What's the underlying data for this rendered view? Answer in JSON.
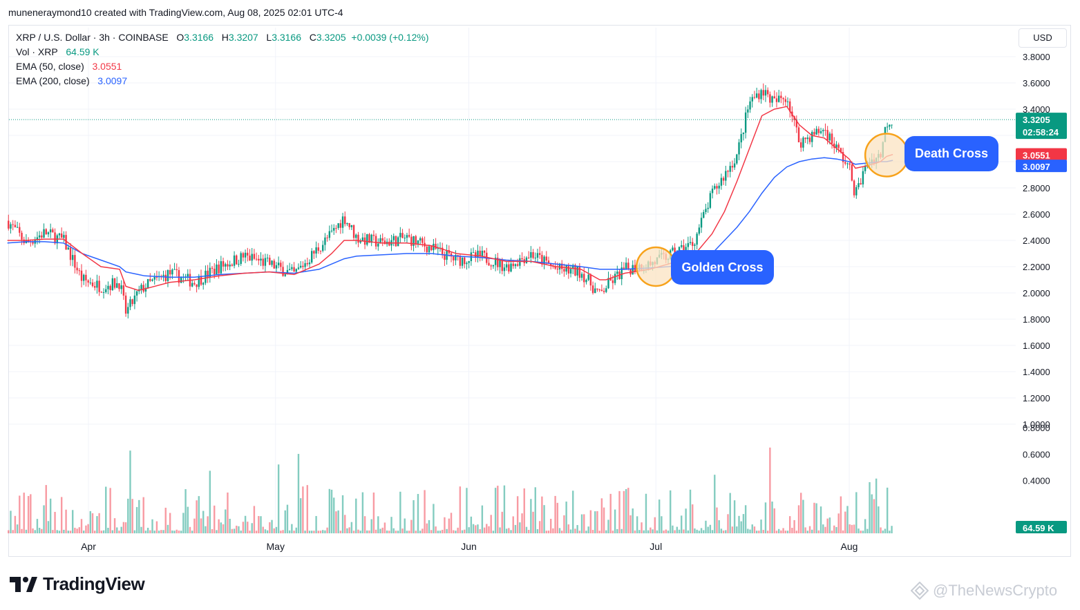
{
  "header": {
    "author_line": "muneneraymond10 created with TradingView.com, Aug 08, 2025 02:01 UTC-4"
  },
  "legend": {
    "symbol": "XRP / U.S. Dollar · 3h · COINBASE",
    "o_key": "O",
    "o": "3.3166",
    "h_key": "H",
    "h": "3.3207",
    "l_key": "L",
    "l": "3.3166",
    "c_key": "C",
    "c": "3.3205",
    "change": "+0.0039 (+0.12%)",
    "vol_label": "Vol · XRP",
    "vol_value": "64.59 K",
    "ema50_label": "EMA (50, close)",
    "ema50_value": "3.0551",
    "ema200_label": "EMA (200, close)",
    "ema200_value": "3.0097"
  },
  "price_scale": {
    "currency": "USD",
    "last_price": "3.3205",
    "countdown": "02:58:24",
    "ema50_tag": "3.0551",
    "ema200_tag": "3.0097",
    "volume_tag": "64.59 K"
  },
  "annotations": {
    "golden_cross": "Golden Cross",
    "death_cross": "Death Cross"
  },
  "branding": {
    "logo": "TradingView",
    "watermark": "@TheNewsCrypto"
  },
  "colors": {
    "up": "#089981",
    "down": "#f23645",
    "ema50": "#f23645",
    "ema200": "#2962ff",
    "callout": "#2962ff",
    "circle_fill": "#fbe3c2",
    "circle_stroke": "#f7a21b"
  },
  "chart_data": {
    "type": "candlestick",
    "title": "XRP / U.S. Dollar · 3h · COINBASE",
    "x_ticks": [
      "Apr",
      "May",
      "Jun",
      "Jul",
      "Aug"
    ],
    "y_ticks": [
      "3.8000",
      "3.6000",
      "3.4000",
      "3.2000",
      "3.0000",
      "2.8000",
      "2.6000",
      "2.4000",
      "2.2000",
      "2.0000",
      "1.8000",
      "1.6000",
      "1.4000",
      "1.2000",
      "1.0000"
    ],
    "volume_ticks": [
      "0.8000",
      "0.6000",
      "0.4000"
    ],
    "ylim": [
      1.0,
      3.85
    ],
    "grid": true,
    "price_series": {
      "name": "XRP",
      "dates": [
        "2025-03-19",
        "2025-03-22",
        "2025-03-25",
        "2025-03-28",
        "2025-03-31",
        "2025-04-03",
        "2025-04-06",
        "2025-04-07",
        "2025-04-09",
        "2025-04-10",
        "2025-04-14",
        "2025-04-18",
        "2025-04-22",
        "2025-04-26",
        "2025-04-30",
        "2025-05-04",
        "2025-05-08",
        "2025-05-10",
        "2025-05-12",
        "2025-05-14",
        "2025-05-18",
        "2025-05-22",
        "2025-05-26",
        "2025-05-30",
        "2025-06-03",
        "2025-06-07",
        "2025-06-11",
        "2025-06-15",
        "2025-06-19",
        "2025-06-22",
        "2025-06-23",
        "2025-06-26",
        "2025-06-30",
        "2025-07-03",
        "2025-07-07",
        "2025-07-10",
        "2025-07-12",
        "2025-07-14",
        "2025-07-16",
        "2025-07-18",
        "2025-07-20",
        "2025-07-22",
        "2025-07-24",
        "2025-07-26",
        "2025-07-28",
        "2025-07-30",
        "2025-08-01",
        "2025-08-02",
        "2025-08-04",
        "2025-08-06",
        "2025-08-07",
        "2025-08-08"
      ],
      "close": [
        2.55,
        2.38,
        2.46,
        2.4,
        2.1,
        2.05,
        2.08,
        1.85,
        2.0,
        2.05,
        2.15,
        2.08,
        2.2,
        2.28,
        2.22,
        2.14,
        2.35,
        2.45,
        2.58,
        2.42,
        2.38,
        2.42,
        2.34,
        2.25,
        2.28,
        2.2,
        2.3,
        2.18,
        2.16,
        1.98,
        2.05,
        2.18,
        2.22,
        2.28,
        2.38,
        2.75,
        2.9,
        3.05,
        3.45,
        3.55,
        3.45,
        3.5,
        3.15,
        3.2,
        3.25,
        3.1,
        2.95,
        2.75,
        3.0,
        3.05,
        3.3,
        3.32
      ],
      "ema50": [
        2.4,
        2.4,
        2.41,
        2.41,
        2.3,
        2.2,
        2.18,
        2.05,
        2.02,
        2.03,
        2.08,
        2.1,
        2.13,
        2.15,
        2.16,
        2.14,
        2.22,
        2.3,
        2.4,
        2.4,
        2.38,
        2.38,
        2.36,
        2.3,
        2.28,
        2.24,
        2.24,
        2.2,
        2.18,
        2.1,
        2.1,
        2.15,
        2.18,
        2.22,
        2.28,
        2.45,
        2.62,
        2.85,
        3.1,
        3.35,
        3.4,
        3.42,
        3.28,
        3.2,
        3.18,
        3.1,
        3.02,
        2.95,
        2.97,
        3.0,
        3.04,
        3.0551
      ],
      "ema200": [
        2.38,
        2.39,
        2.39,
        2.38,
        2.3,
        2.25,
        2.2,
        2.16,
        2.14,
        2.13,
        2.12,
        2.12,
        2.14,
        2.15,
        2.16,
        2.15,
        2.18,
        2.22,
        2.26,
        2.28,
        2.29,
        2.3,
        2.3,
        2.28,
        2.27,
        2.25,
        2.24,
        2.22,
        2.2,
        2.18,
        2.18,
        2.18,
        2.19,
        2.2,
        2.22,
        2.3,
        2.4,
        2.5,
        2.62,
        2.76,
        2.88,
        2.96,
        3.0,
        3.02,
        3.03,
        3.02,
        3.0,
        2.98,
        2.99,
        3.0,
        3.0,
        3.0097
      ]
    },
    "last_close": 3.3205,
    "volume_last": "64.59K"
  }
}
